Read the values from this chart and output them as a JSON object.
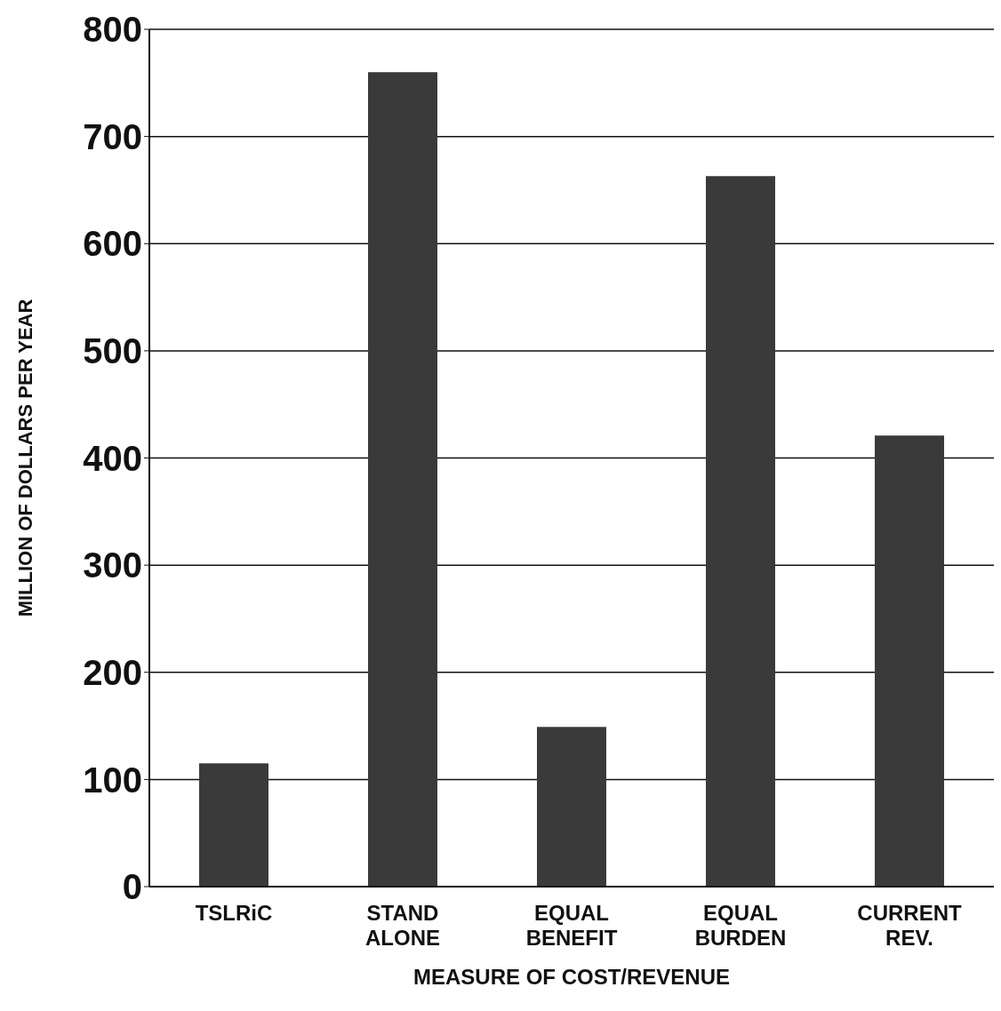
{
  "chart_data": {
    "type": "bar",
    "xlabel": "MEASURE OF COST/REVENUE",
    "ylabel": "MILLION  OF DOLLARS PER YEAR",
    "categories": [
      "TSLRiC",
      "STAND ALONE",
      "EQUAL BENEFIT",
      "EQUAL BURDEN",
      "CURRENT REV."
    ],
    "values": [
      115,
      760,
      149,
      663,
      421
    ],
    "color": "#3a3a3a",
    "ylim": [
      0,
      800
    ],
    "yticks": [
      0,
      100,
      200,
      300,
      400,
      500,
      600,
      700,
      800
    ],
    "grid": "y"
  }
}
